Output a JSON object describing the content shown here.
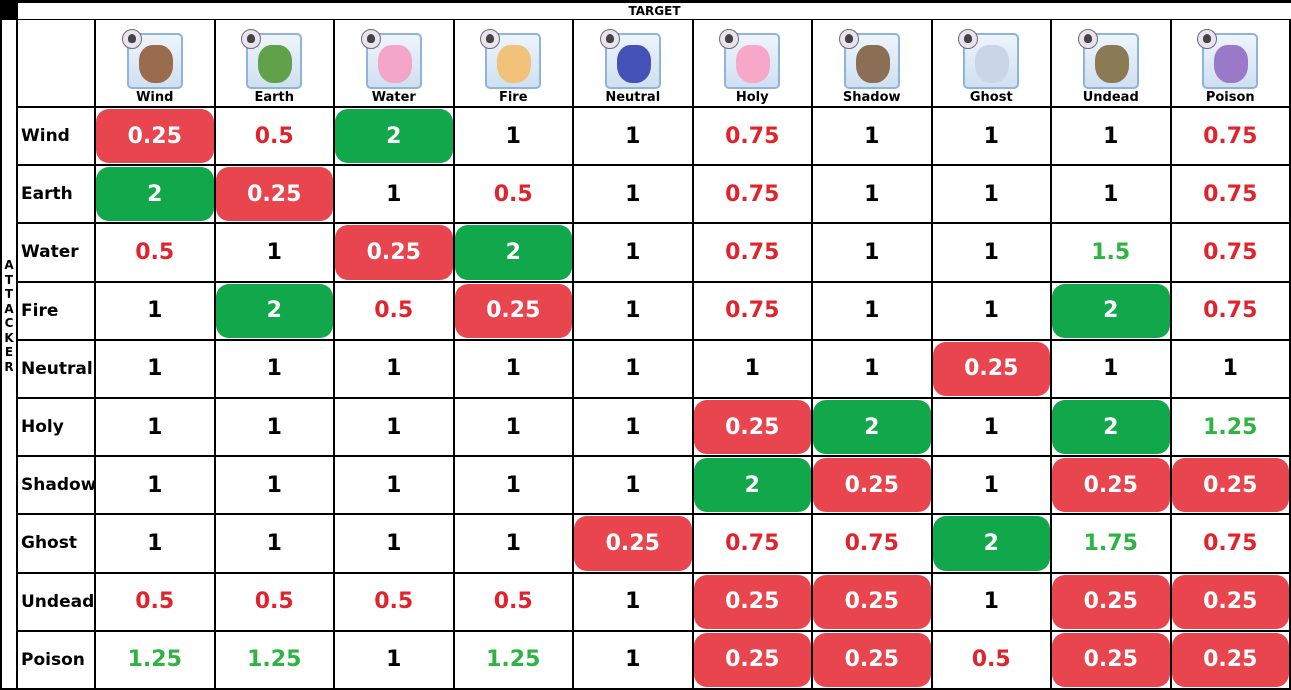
{
  "header": {
    "target_label": "TARGET",
    "attacker_label": "ATTACKER"
  },
  "colors": {
    "bad_bg": "#e8454f",
    "good_bg": "#10a84a",
    "red_text": "#e0242d",
    "green_text": "#2fb342"
  },
  "columns": [
    {
      "name": "Wind",
      "icon": "griffon-monster-icon",
      "tint": "#9a6b4c"
    },
    {
      "name": "Earth",
      "icon": "mushroom-monster-icon",
      "tint": "#5fa24a"
    },
    {
      "name": "Water",
      "icon": "poring-monster-icon",
      "tint": "#f4a6c8"
    },
    {
      "name": "Fire",
      "icon": "fire-girl-icon",
      "tint": "#f2c27a"
    },
    {
      "name": "Neutral",
      "icon": "neutral-girl-icon",
      "tint": "#4452b8"
    },
    {
      "name": "Holy",
      "icon": "angeling-monster-icon",
      "tint": "#f7a8c8"
    },
    {
      "name": "Shadow",
      "icon": "stick-monster-icon",
      "tint": "#8b6f55"
    },
    {
      "name": "Ghost",
      "icon": "whisper-ghost-icon",
      "tint": "#c9d6e8"
    },
    {
      "name": "Undead",
      "icon": "zombie-soldier-icon",
      "tint": "#8a7a55"
    },
    {
      "name": "Poison",
      "icon": "poison-mole-icon",
      "tint": "#9a7ac8"
    }
  ],
  "rows": [
    {
      "name": "Wind",
      "cells": [
        {
          "v": "0.25",
          "bg": "red"
        },
        {
          "v": "0.5",
          "c": "red"
        },
        {
          "v": "2",
          "bg": "green"
        },
        {
          "v": "1"
        },
        {
          "v": "1"
        },
        {
          "v": "0.75",
          "c": "red"
        },
        {
          "v": "1"
        },
        {
          "v": "1"
        },
        {
          "v": "1"
        },
        {
          "v": "0.75",
          "c": "red"
        }
      ]
    },
    {
      "name": "Earth",
      "cells": [
        {
          "v": "2",
          "bg": "green"
        },
        {
          "v": "0.25",
          "bg": "red"
        },
        {
          "v": "1"
        },
        {
          "v": "0.5",
          "c": "red"
        },
        {
          "v": "1"
        },
        {
          "v": "0.75",
          "c": "red"
        },
        {
          "v": "1"
        },
        {
          "v": "1"
        },
        {
          "v": "1"
        },
        {
          "v": "0.75",
          "c": "red"
        }
      ]
    },
    {
      "name": "Water",
      "cells": [
        {
          "v": "0.5",
          "c": "red"
        },
        {
          "v": "1"
        },
        {
          "v": "0.25",
          "bg": "red"
        },
        {
          "v": "2",
          "bg": "green"
        },
        {
          "v": "1"
        },
        {
          "v": "0.75",
          "c": "red"
        },
        {
          "v": "1"
        },
        {
          "v": "1"
        },
        {
          "v": "1.5",
          "c": "green"
        },
        {
          "v": "0.75",
          "c": "red"
        }
      ]
    },
    {
      "name": "Fire",
      "cells": [
        {
          "v": "1"
        },
        {
          "v": "2",
          "bg": "green"
        },
        {
          "v": "0.5",
          "c": "red"
        },
        {
          "v": "0.25",
          "bg": "red"
        },
        {
          "v": "1"
        },
        {
          "v": "0.75",
          "c": "red"
        },
        {
          "v": "1"
        },
        {
          "v": "1"
        },
        {
          "v": "2",
          "bg": "green"
        },
        {
          "v": "0.75",
          "c": "red"
        }
      ]
    },
    {
      "name": "Neutral",
      "cells": [
        {
          "v": "1"
        },
        {
          "v": "1"
        },
        {
          "v": "1"
        },
        {
          "v": "1"
        },
        {
          "v": "1"
        },
        {
          "v": "1"
        },
        {
          "v": "1"
        },
        {
          "v": "0.25",
          "bg": "red"
        },
        {
          "v": "1"
        },
        {
          "v": "1"
        }
      ]
    },
    {
      "name": "Holy",
      "cells": [
        {
          "v": "1"
        },
        {
          "v": "1"
        },
        {
          "v": "1"
        },
        {
          "v": "1"
        },
        {
          "v": "1"
        },
        {
          "v": "0.25",
          "bg": "red"
        },
        {
          "v": "2",
          "bg": "green"
        },
        {
          "v": "1"
        },
        {
          "v": "2",
          "bg": "green"
        },
        {
          "v": "1.25",
          "c": "green"
        }
      ]
    },
    {
      "name": "Shadow",
      "cells": [
        {
          "v": "1"
        },
        {
          "v": "1"
        },
        {
          "v": "1"
        },
        {
          "v": "1"
        },
        {
          "v": "1"
        },
        {
          "v": "2",
          "bg": "green"
        },
        {
          "v": "0.25",
          "bg": "red"
        },
        {
          "v": "1"
        },
        {
          "v": "0.25",
          "bg": "red"
        },
        {
          "v": "0.25",
          "bg": "red"
        }
      ]
    },
    {
      "name": "Ghost",
      "cells": [
        {
          "v": "1"
        },
        {
          "v": "1"
        },
        {
          "v": "1"
        },
        {
          "v": "1"
        },
        {
          "v": "0.25",
          "bg": "red"
        },
        {
          "v": "0.75",
          "c": "red"
        },
        {
          "v": "0.75",
          "c": "red"
        },
        {
          "v": "2",
          "bg": "green"
        },
        {
          "v": "1.75",
          "c": "green"
        },
        {
          "v": "0.75",
          "c": "red"
        }
      ]
    },
    {
      "name": "Undead",
      "cells": [
        {
          "v": "0.5",
          "c": "red"
        },
        {
          "v": "0.5",
          "c": "red"
        },
        {
          "v": "0.5",
          "c": "red"
        },
        {
          "v": "0.5",
          "c": "red"
        },
        {
          "v": "1"
        },
        {
          "v": "0.25",
          "bg": "red"
        },
        {
          "v": "0.25",
          "bg": "red"
        },
        {
          "v": "1"
        },
        {
          "v": "0.25",
          "bg": "red"
        },
        {
          "v": "0.25",
          "bg": "red"
        }
      ]
    },
    {
      "name": "Poison",
      "cells": [
        {
          "v": "1.25",
          "c": "green"
        },
        {
          "v": "1.25",
          "c": "green"
        },
        {
          "v": "1"
        },
        {
          "v": "1.25",
          "c": "green"
        },
        {
          "v": "1"
        },
        {
          "v": "0.25",
          "bg": "red"
        },
        {
          "v": "0.25",
          "bg": "red"
        },
        {
          "v": "0.5",
          "c": "red"
        },
        {
          "v": "0.25",
          "bg": "red"
        },
        {
          "v": "0.25",
          "bg": "red"
        }
      ]
    }
  ]
}
